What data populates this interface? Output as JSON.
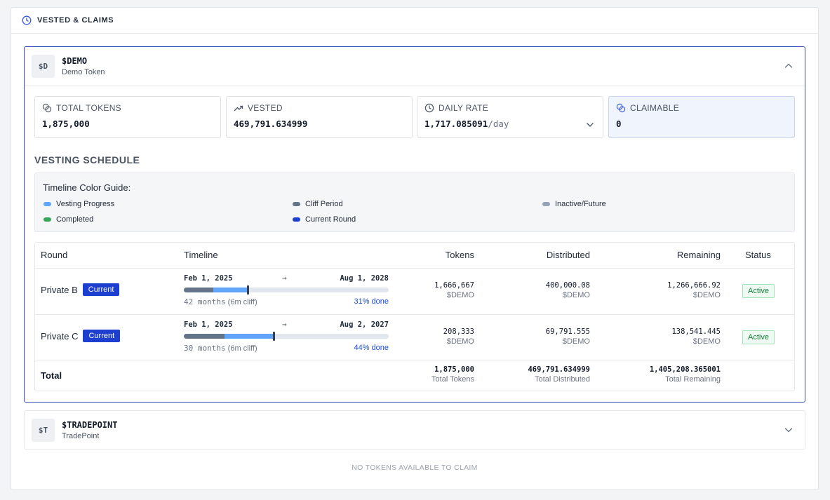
{
  "header": {
    "title": "VESTED & CLAIMS",
    "icon": "clock-icon"
  },
  "tokens": [
    {
      "avatar": "$D",
      "symbol": "$DEMO",
      "name": "Demo Token",
      "expanded": true,
      "stats": {
        "total_tokens": {
          "label": "TOTAL TOKENS",
          "value": "1,875,000"
        },
        "vested": {
          "label": "VESTED",
          "value": "469,791.634999"
        },
        "daily_rate": {
          "label": "DAILY RATE",
          "value": "1,717.085091",
          "unit": "/day"
        },
        "claimable": {
          "label": "CLAIMABLE",
          "value": "0"
        }
      },
      "schedule_title": "VESTING SCHEDULE",
      "guide": {
        "title": "Timeline Color Guide:",
        "items": [
          {
            "label": "Vesting Progress",
            "color": "#60a5fa"
          },
          {
            "label": "Cliff Period",
            "color": "#64748b"
          },
          {
            "label": "Inactive/Future",
            "color": "#94a3b8"
          },
          {
            "label": "Completed",
            "color": "#3aa55a"
          },
          {
            "label": "Current Round",
            "color": "#1d3fcf"
          }
        ]
      },
      "table": {
        "headers": [
          "Round",
          "Timeline",
          "Tokens",
          "Distributed",
          "Remaining",
          "Status"
        ],
        "rows": [
          {
            "round": "Private B",
            "badge": "Current",
            "start": "Feb 1, 2025",
            "arrow": "→",
            "end": "Aug 1, 2028",
            "duration": "42 months",
            "cliff": "(6m cliff)",
            "progress_text": "31% done",
            "cliff_fraction": 0.143,
            "progress_fraction": 0.31,
            "tokens": "1,666,667",
            "tokens_unit": "$DEMO",
            "distributed": "400,000.08",
            "distributed_unit": "$DEMO",
            "remaining": "1,266,666.92",
            "remaining_unit": "$DEMO",
            "status": "Active"
          },
          {
            "round": "Private C",
            "badge": "Current",
            "start": "Feb 1, 2025",
            "arrow": "→",
            "end": "Aug 2, 2027",
            "duration": "30 months",
            "cliff": "(6m cliff)",
            "progress_text": "44% done",
            "cliff_fraction": 0.2,
            "progress_fraction": 0.44,
            "tokens": "208,333",
            "tokens_unit": "$DEMO",
            "distributed": "69,791.555",
            "distributed_unit": "$DEMO",
            "remaining": "138,541.445",
            "remaining_unit": "$DEMO",
            "status": "Active"
          }
        ],
        "total": {
          "label": "Total",
          "tokens": "1,875,000",
          "tokens_sub": "Total Tokens",
          "distributed": "469,791.634999",
          "distributed_sub": "Total Distributed",
          "remaining": "1,405,208.365001",
          "remaining_sub": "Total Remaining"
        }
      }
    },
    {
      "avatar": "$T",
      "symbol": "$TRADEPOINT",
      "name": "TradePoint",
      "expanded": false
    }
  ],
  "empty_message": "NO TOKENS AVAILABLE TO CLAIM"
}
